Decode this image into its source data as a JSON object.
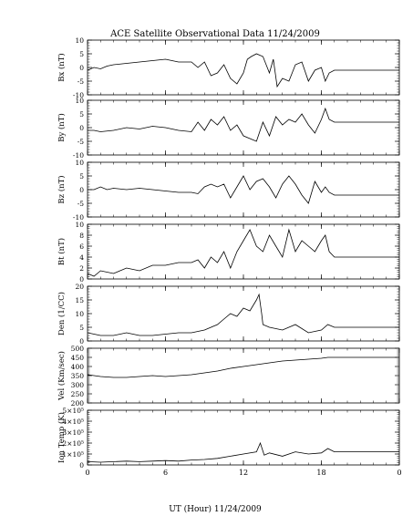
{
  "figure": {
    "title": "ACE Satellite Observational Data   11/24/2009",
    "xlabel": "UT (Hour)   11/24/2009"
  },
  "chart_data": [
    {
      "type": "line",
      "ylabel": "Bx (nT)",
      "ylim": [
        -10,
        10
      ],
      "yticks": [
        "10",
        "5",
        "0",
        "-5",
        "-10"
      ],
      "ytick_values": [
        10,
        5,
        0,
        -5,
        -10
      ],
      "xlim": [
        0,
        24
      ],
      "xticks": [
        "0",
        "6",
        "12",
        "18",
        "0"
      ],
      "xtick_values": [
        0,
        6,
        12,
        18,
        24
      ],
      "x": [
        0,
        0.5,
        1,
        1.5,
        2,
        3,
        4,
        5,
        6,
        7,
        8,
        8.5,
        9,
        9.5,
        10,
        10.5,
        11,
        11.5,
        12,
        12.3,
        12.6,
        13,
        13.5,
        14,
        14.3,
        14.6,
        15,
        15.5,
        16,
        16.5,
        17,
        17.5,
        18,
        18.3,
        18.6,
        19,
        24
      ],
      "values": [
        -1,
        0,
        -0.5,
        0.5,
        1,
        1.5,
        2,
        2.5,
        3,
        2,
        2,
        0,
        2,
        -3,
        -2,
        1,
        -4,
        -6,
        -2,
        3,
        4,
        5,
        4,
        -2,
        3,
        -7,
        -4,
        -5,
        1,
        2,
        -5,
        -1,
        0,
        -5,
        -2,
        -1,
        -1
      ]
    },
    {
      "type": "line",
      "ylabel": "By (nT)",
      "ylim": [
        -10,
        10
      ],
      "yticks": [
        "10",
        "5",
        "0",
        "-5",
        "-10"
      ],
      "ytick_values": [
        10,
        5,
        0,
        -5,
        -10
      ],
      "xlim": [
        0,
        24
      ],
      "x": [
        0,
        0.5,
        1,
        2,
        3,
        4,
        5,
        6,
        7,
        8,
        8.5,
        9,
        9.5,
        10,
        10.5,
        11,
        11.5,
        12,
        12.5,
        13,
        13.5,
        14,
        14.5,
        15,
        15.5,
        16,
        16.5,
        17,
        17.5,
        18,
        18.3,
        18.6,
        19,
        24
      ],
      "values": [
        -1,
        -1,
        -1.5,
        -1,
        0,
        -0.5,
        0.5,
        0,
        -1,
        -1.5,
        2,
        -1,
        3,
        1,
        4,
        -1,
        1,
        -3,
        -4,
        -5,
        2,
        -3,
        4,
        1,
        3,
        2,
        5,
        1,
        -2,
        3,
        7,
        3,
        2,
        2
      ]
    },
    {
      "type": "line",
      "ylabel": "Bz (nT)",
      "ylim": [
        -10,
        10
      ],
      "yticks": [
        "10",
        "5",
        "0",
        "-5",
        "-10"
      ],
      "ytick_values": [
        10,
        5,
        0,
        -5,
        -10
      ],
      "xlim": [
        0,
        24
      ],
      "x": [
        0,
        0.5,
        1,
        1.5,
        2,
        3,
        4,
        5,
        6,
        7,
        8,
        8.5,
        9,
        9.5,
        10,
        10.5,
        11,
        11.5,
        12,
        12.5,
        13,
        13.5,
        14,
        14.5,
        15,
        15.5,
        16,
        16.5,
        17,
        17.5,
        18,
        18.3,
        18.6,
        19,
        24
      ],
      "values": [
        0,
        0,
        1,
        0,
        0.5,
        0,
        0.5,
        0,
        -0.5,
        -1,
        -1,
        -1.5,
        1,
        2,
        1,
        2,
        -3,
        1,
        5,
        0,
        3,
        4,
        1,
        -3,
        2,
        5,
        2,
        -2,
        -5,
        3,
        -1,
        1,
        -1,
        -2,
        -2
      ]
    },
    {
      "type": "line",
      "ylabel": "Bt (nT)",
      "ylim": [
        0,
        10
      ],
      "yticks": [
        "10",
        "8",
        "6",
        "4",
        "2",
        "0"
      ],
      "ytick_values": [
        10,
        8,
        6,
        4,
        2,
        0
      ],
      "xlim": [
        0,
        24
      ],
      "x": [
        0,
        0.5,
        1,
        2,
        3,
        4,
        5,
        6,
        7,
        8,
        8.5,
        9,
        9.5,
        10,
        10.5,
        11,
        11.5,
        12,
        12.5,
        13,
        13.5,
        14,
        14.5,
        15,
        15.5,
        16,
        16.5,
        17,
        17.5,
        18,
        18.3,
        18.6,
        19,
        24
      ],
      "values": [
        1,
        0.5,
        1.5,
        1,
        2,
        1.5,
        2.5,
        2.5,
        3,
        3,
        3.5,
        2,
        4,
        3,
        5,
        2,
        5,
        7,
        9,
        6,
        5,
        8,
        6,
        4,
        9,
        5,
        7,
        6,
        5,
        7,
        8,
        5,
        4,
        4
      ]
    },
    {
      "type": "line",
      "ylabel": "Den (1/CC)",
      "ylim": [
        0,
        20
      ],
      "yticks": [
        "20",
        "15",
        "10",
        "5",
        "0"
      ],
      "ytick_values": [
        20,
        15,
        10,
        5,
        0
      ],
      "xlim": [
        0,
        24
      ],
      "x": [
        0,
        1,
        2,
        3,
        4,
        5,
        6,
        7,
        8,
        9,
        10,
        10.5,
        11,
        11.5,
        12,
        12.5,
        13,
        13.2,
        13.4,
        13.5,
        14,
        15,
        16,
        17,
        18,
        18.5,
        19,
        24
      ],
      "values": [
        3,
        2,
        2,
        3,
        2,
        2,
        2.5,
        3,
        3,
        4,
        6,
        8,
        10,
        9,
        12,
        11,
        15,
        17,
        10,
        6,
        5,
        4,
        6,
        3,
        4,
        6,
        5,
        5
      ]
    },
    {
      "type": "line",
      "ylabel": "Vel (Km/sec)",
      "ylim": [
        200,
        500
      ],
      "yticks": [
        "500",
        "450",
        "400",
        "350",
        "300",
        "250",
        "200"
      ],
      "ytick_values": [
        500,
        450,
        400,
        350,
        300,
        250,
        200
      ],
      "xlim": [
        0,
        24
      ],
      "x": [
        0,
        1,
        2,
        3,
        4,
        5,
        6,
        7,
        8,
        9,
        10,
        11,
        12,
        13,
        14,
        15,
        16,
        17,
        18,
        18.5,
        19,
        24
      ],
      "values": [
        355,
        345,
        340,
        340,
        345,
        350,
        345,
        350,
        355,
        365,
        375,
        390,
        400,
        410,
        420,
        430,
        435,
        440,
        445,
        450,
        450,
        450
      ]
    },
    {
      "type": "line",
      "ylabel": "Ion Temp (K)",
      "ylim": [
        0,
        500000
      ],
      "yticks": [
        "5×10⁵",
        "4×10⁵",
        "3×10⁵",
        "2×10⁵",
        "1×10⁵",
        "0"
      ],
      "ytick_values": [
        500000,
        400000,
        300000,
        200000,
        100000,
        0
      ],
      "xlim": [
        0,
        24
      ],
      "x": [
        0,
        1,
        2,
        3,
        4,
        5,
        6,
        7,
        8,
        9,
        10,
        11,
        12,
        13,
        13.3,
        13.6,
        14,
        15,
        16,
        17,
        18,
        18.5,
        19,
        24
      ],
      "values": [
        30000,
        25000,
        30000,
        35000,
        30000,
        35000,
        40000,
        35000,
        45000,
        50000,
        60000,
        80000,
        100000,
        120000,
        200000,
        90000,
        110000,
        80000,
        120000,
        100000,
        110000,
        150000,
        120000,
        120000
      ]
    }
  ]
}
